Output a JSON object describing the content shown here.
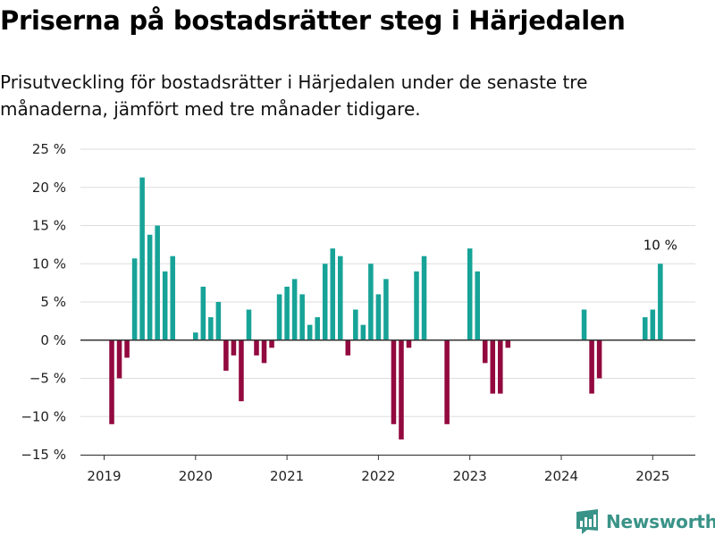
{
  "title": "Priserna på bostadsrätter steg i Härjedalen",
  "subtitle": "Prisutveckling för bostadsrätter i Härjedalen under de senaste tre månaderna, jämfört med tre månader tidigare.",
  "brand": {
    "name": "Newsworthy",
    "color": "#3a9388"
  },
  "colors": {
    "positive": "#17a398",
    "negative": "#92093f",
    "grid": "#dddddd",
    "axis": "#333333"
  },
  "chart_data": {
    "type": "bar",
    "ylim": [
      -15,
      25
    ],
    "yticks": [
      -15,
      -10,
      -5,
      0,
      5,
      10,
      15,
      20,
      25
    ],
    "ytick_labels": [
      "−15 %",
      "−10 %",
      "−5 %",
      "0 %",
      "5 %",
      "10 %",
      "15 %",
      "20 %",
      "25 %"
    ],
    "xticks": [
      2019,
      2020,
      2021,
      2022,
      2023,
      2024,
      2025
    ],
    "xtick_labels": [
      "2019",
      "2020",
      "2021",
      "2022",
      "2023",
      "2024",
      "2025"
    ],
    "bar_width_months": 0.65,
    "series": [
      {
        "x": [
          "2019-01",
          "2019-02",
          "2019-03",
          "2019-04",
          "2019-05",
          "2019-06",
          "2019-07",
          "2019-08",
          "2019-09",
          "2019-10",
          "2019-11",
          "2019-12",
          "2020-01",
          "2020-02",
          "2020-03",
          "2020-04",
          "2020-05",
          "2020-06",
          "2020-07",
          "2020-08",
          "2020-09",
          "2020-10",
          "2020-11",
          "2020-12",
          "2021-01",
          "2021-02",
          "2021-03",
          "2021-04",
          "2021-05",
          "2021-06",
          "2021-07",
          "2021-08",
          "2021-09",
          "2021-10",
          "2021-11",
          "2021-12",
          "2022-01",
          "2022-02",
          "2022-03",
          "2022-04",
          "2022-05",
          "2022-06",
          "2022-07",
          "2022-08",
          "2022-09",
          "2022-10",
          "2022-11",
          "2022-12",
          "2023-01",
          "2023-02",
          "2023-03",
          "2023-04",
          "2023-05",
          "2023-06",
          "2023-07",
          "2023-08",
          "2023-09",
          "2023-10",
          "2023-11",
          "2023-12",
          "2024-01",
          "2024-02",
          "2024-03",
          "2024-04",
          "2024-05",
          "2024-06",
          "2024-07",
          "2024-08",
          "2024-09",
          "2024-10",
          "2024-11",
          "2024-12",
          "2025-01",
          "2025-02"
        ],
        "values": [
          null,
          -11,
          -5,
          -2.3,
          10.7,
          21.3,
          13.8,
          15,
          9,
          11,
          null,
          null,
          1,
          7,
          3,
          5,
          -4,
          -2,
          -8,
          4,
          -2,
          -3,
          -1,
          6,
          7,
          8,
          6,
          2,
          3,
          10,
          12,
          11,
          -2,
          4,
          2,
          10,
          6,
          8,
          -11,
          -13,
          -1,
          9,
          11,
          null,
          null,
          -11,
          null,
          null,
          12,
          9,
          -3,
          -7,
          -7,
          -1,
          null,
          null,
          null,
          null,
          null,
          null,
          null,
          null,
          null,
          4,
          -7,
          -5,
          null,
          null,
          null,
          null,
          null,
          3,
          4,
          10
        ]
      }
    ],
    "annotations": [
      {
        "x": "2025-02",
        "text": "10 %"
      }
    ]
  }
}
